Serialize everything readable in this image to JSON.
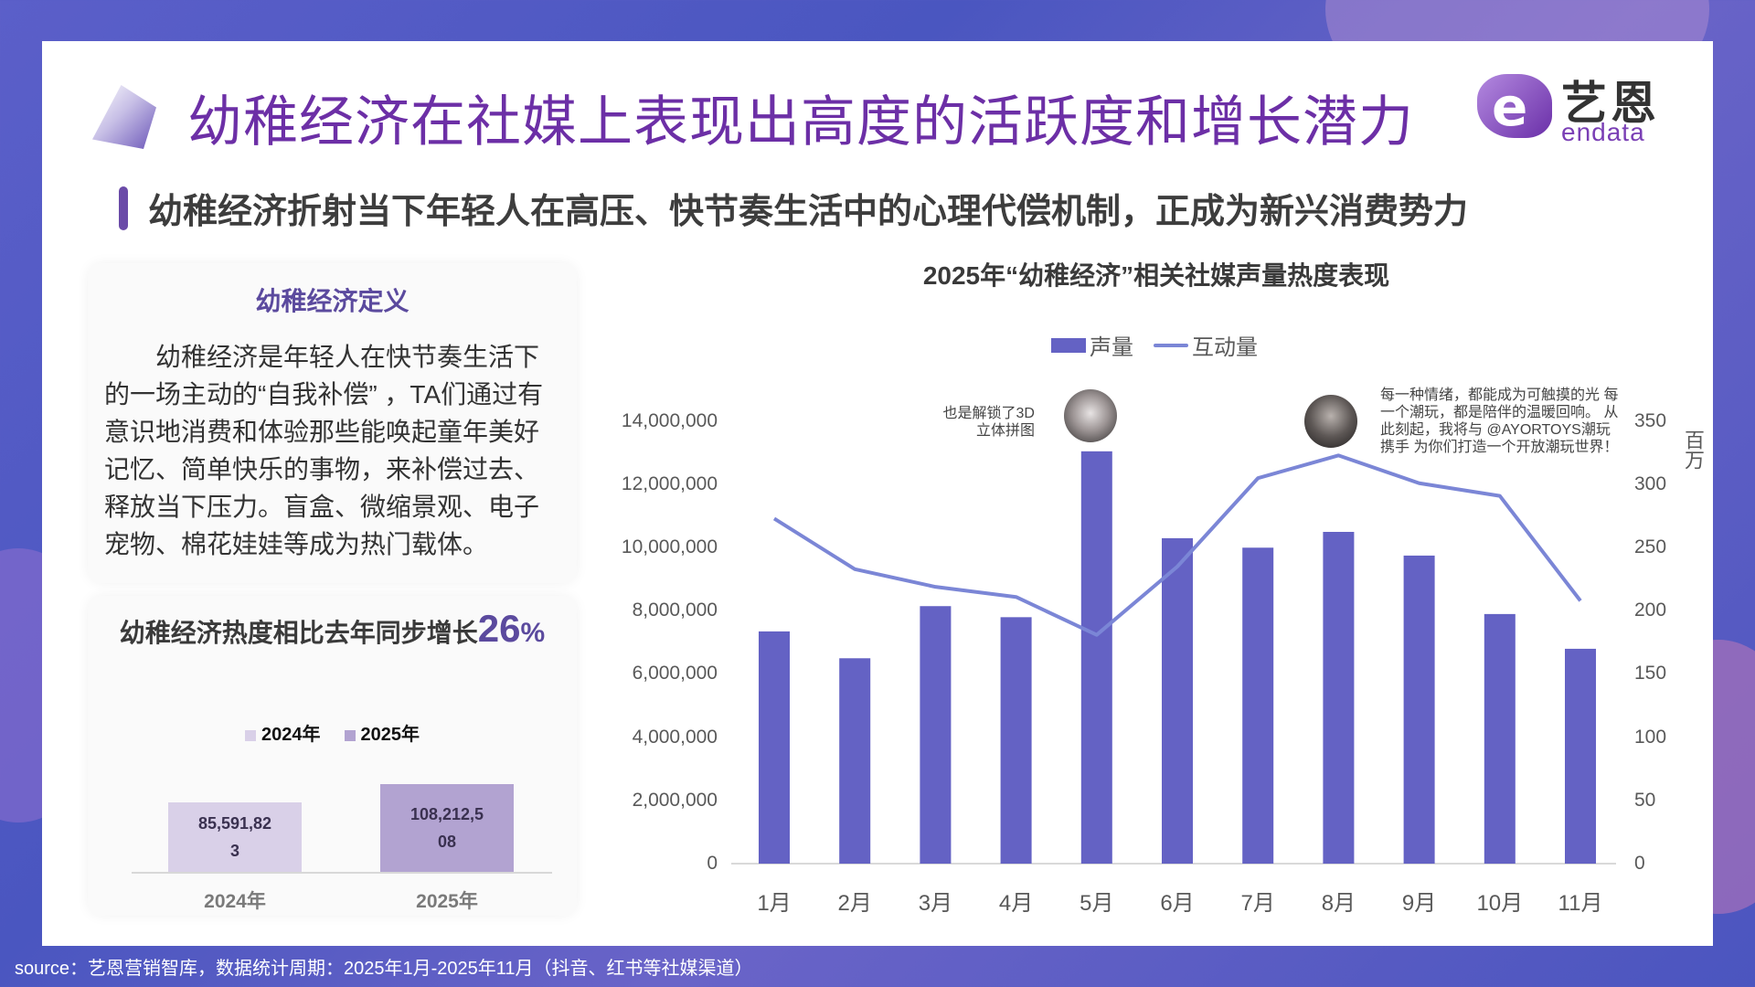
{
  "header": {
    "title": "幼稚经济在社媒上表现出高度的活跃度和增长潜力",
    "logo_cn": "艺恩",
    "logo_en": "endata",
    "logo_mark": "e"
  },
  "subtitle": "幼稚经济折射当下年轻人在高压、快节奏生活中的心理代偿机制，正成为新兴消费势力",
  "definition_card": {
    "title": "幼稚经济定义",
    "body": "幼稚经济是年轻人在快节奏生活下的一场主动的“自我补偿” ，TA们通过有意识地消费和体验那些能唤起童年美好记忆、简单快乐的事物，来补偿过去、释放当下压力。盲盒、微缩景观、电子宠物、棉花娃娃等成为热门载体。"
  },
  "growth_card": {
    "title_prefix": "幼稚经济热度相比去年同步增长",
    "pct_value": "26",
    "pct_sign": "%",
    "legend": [
      {
        "label": "2024年",
        "color": "#d9d0e8"
      },
      {
        "label": "2025年",
        "color": "#b2a3d1"
      }
    ],
    "bars": [
      {
        "label": "2024年",
        "value_line1": "85,591,82",
        "value_line2": "3",
        "value": 85591823,
        "color": "#d9d0e8"
      },
      {
        "label": "2025年",
        "value_line1": "108,212,5",
        "value_line2": "08",
        "value": 108212508,
        "color": "#b2a3d1"
      }
    ]
  },
  "main_chart": {
    "title": "2025年“幼稚经济”相关社媒声量热度表现",
    "legend_bar": "声量",
    "legend_line": "互动量",
    "left_ticks": [
      "14,000,000",
      "12,000,000",
      "10,000,000",
      "8,000,000",
      "6,000,000",
      "4,000,000",
      "2,000,000",
      "0"
    ],
    "right_ticks": [
      "350",
      "300",
      "250",
      "200",
      "150",
      "100",
      "50",
      "0"
    ],
    "right_axis_title": "百万",
    "x_labels": [
      "1月",
      "2月",
      "3月",
      "4月",
      "5月",
      "6月",
      "7月",
      "8月",
      "9月",
      "10月",
      "11月"
    ],
    "annotation_1": {
      "line1": "也是解锁了3D",
      "line2": "立体拼图"
    },
    "annotation_2": {
      "line1": "每一种情绪，都能成为可触摸的光 每",
      "line2": "一个潮玩，都是陪伴的温暖回响。 从",
      "line3": "此刻起，我将与 @AYORTOYS潮玩",
      "line4": "携手 为你们打造一个开放潮玩世界！"
    },
    "bar_color": "#6462c4",
    "line_color": "#7b86d6"
  },
  "chart_data": [
    {
      "type": "bar+line",
      "title": "2025年“幼稚经济”相关社媒声量热度表现",
      "categories": [
        "1月",
        "2月",
        "3月",
        "4月",
        "5月",
        "6月",
        "7月",
        "8月",
        "9月",
        "10月",
        "11月"
      ],
      "series": [
        {
          "name": "声量",
          "type": "bar",
          "axis": "left",
          "values": [
            7350000,
            6500000,
            8150000,
            7800000,
            13050000,
            10300000,
            10000000,
            10500000,
            9750000,
            7900000,
            6800000
          ]
        },
        {
          "name": "互动量",
          "type": "line",
          "axis": "right",
          "values": [
            273,
            233,
            219,
            211,
            181,
            235,
            305,
            323,
            301,
            291,
            208
          ]
        }
      ],
      "ylim_left": [
        0,
        14000000
      ],
      "ylim_right": [
        0,
        350
      ],
      "ylabel_right": "百万",
      "legend_position": "top",
      "grid": false
    },
    {
      "type": "bar",
      "title": "幼稚经济热度相比去年同步增长26%",
      "categories": [
        "2024年",
        "2025年"
      ],
      "values": [
        85591823,
        108212508
      ],
      "legend": [
        "2024年",
        "2025年"
      ]
    }
  ],
  "footer": {
    "source": "source：艺恩营销智库，数据统计周期：2025年1月-2025年11月（抖音、红书等社媒渠道）"
  }
}
